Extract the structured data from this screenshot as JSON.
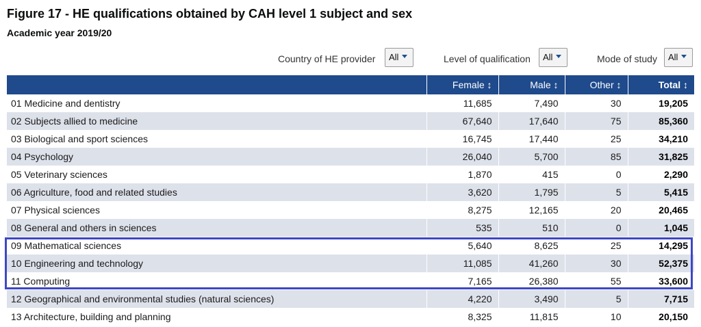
{
  "title": "Figure 17 - HE qualifications obtained by CAH level 1 subject and sex",
  "subtitle": "Academic year 2019/20",
  "filters": [
    {
      "label": "Country of HE provider",
      "value": "All"
    },
    {
      "label": "Level of qualification",
      "value": "All"
    },
    {
      "label": "Mode of study",
      "value": "All"
    }
  ],
  "columns": [
    "",
    "Female ↕",
    "Male ↕",
    "Other ↕",
    "Total ↕"
  ],
  "rows": [
    [
      "01 Medicine and dentistry",
      "11,685",
      "7,490",
      "30",
      "19,205"
    ],
    [
      "02 Subjects allied to medicine",
      "67,640",
      "17,640",
      "75",
      "85,360"
    ],
    [
      "03 Biological and sport sciences",
      "16,745",
      "17,440",
      "25",
      "34,210"
    ],
    [
      "04 Psychology",
      "26,040",
      "5,700",
      "85",
      "31,825"
    ],
    [
      "05 Veterinary sciences",
      "1,870",
      "415",
      "0",
      "2,290"
    ],
    [
      "06 Agriculture, food and related studies",
      "3,620",
      "1,795",
      "5",
      "5,415"
    ],
    [
      "07 Physical sciences",
      "8,275",
      "12,165",
      "20",
      "20,465"
    ],
    [
      "08 General and others in sciences",
      "535",
      "510",
      "0",
      "1,045"
    ],
    [
      "09 Mathematical sciences",
      "5,640",
      "8,625",
      "25",
      "14,295"
    ],
    [
      "10 Engineering and technology",
      "11,085",
      "41,260",
      "30",
      "52,375"
    ],
    [
      "11 Computing",
      "7,165",
      "26,380",
      "55",
      "33,600"
    ],
    [
      "12 Geographical and environmental studies (natural sciences)",
      "4,220",
      "3,490",
      "5",
      "7,715"
    ],
    [
      "13 Architecture, building and planning",
      "8,325",
      "11,815",
      "10",
      "20,150"
    ]
  ],
  "colors": {
    "header_bg": "#1f4a8c",
    "stripe": "#dde1ea",
    "highlight": "#3d47c4"
  }
}
